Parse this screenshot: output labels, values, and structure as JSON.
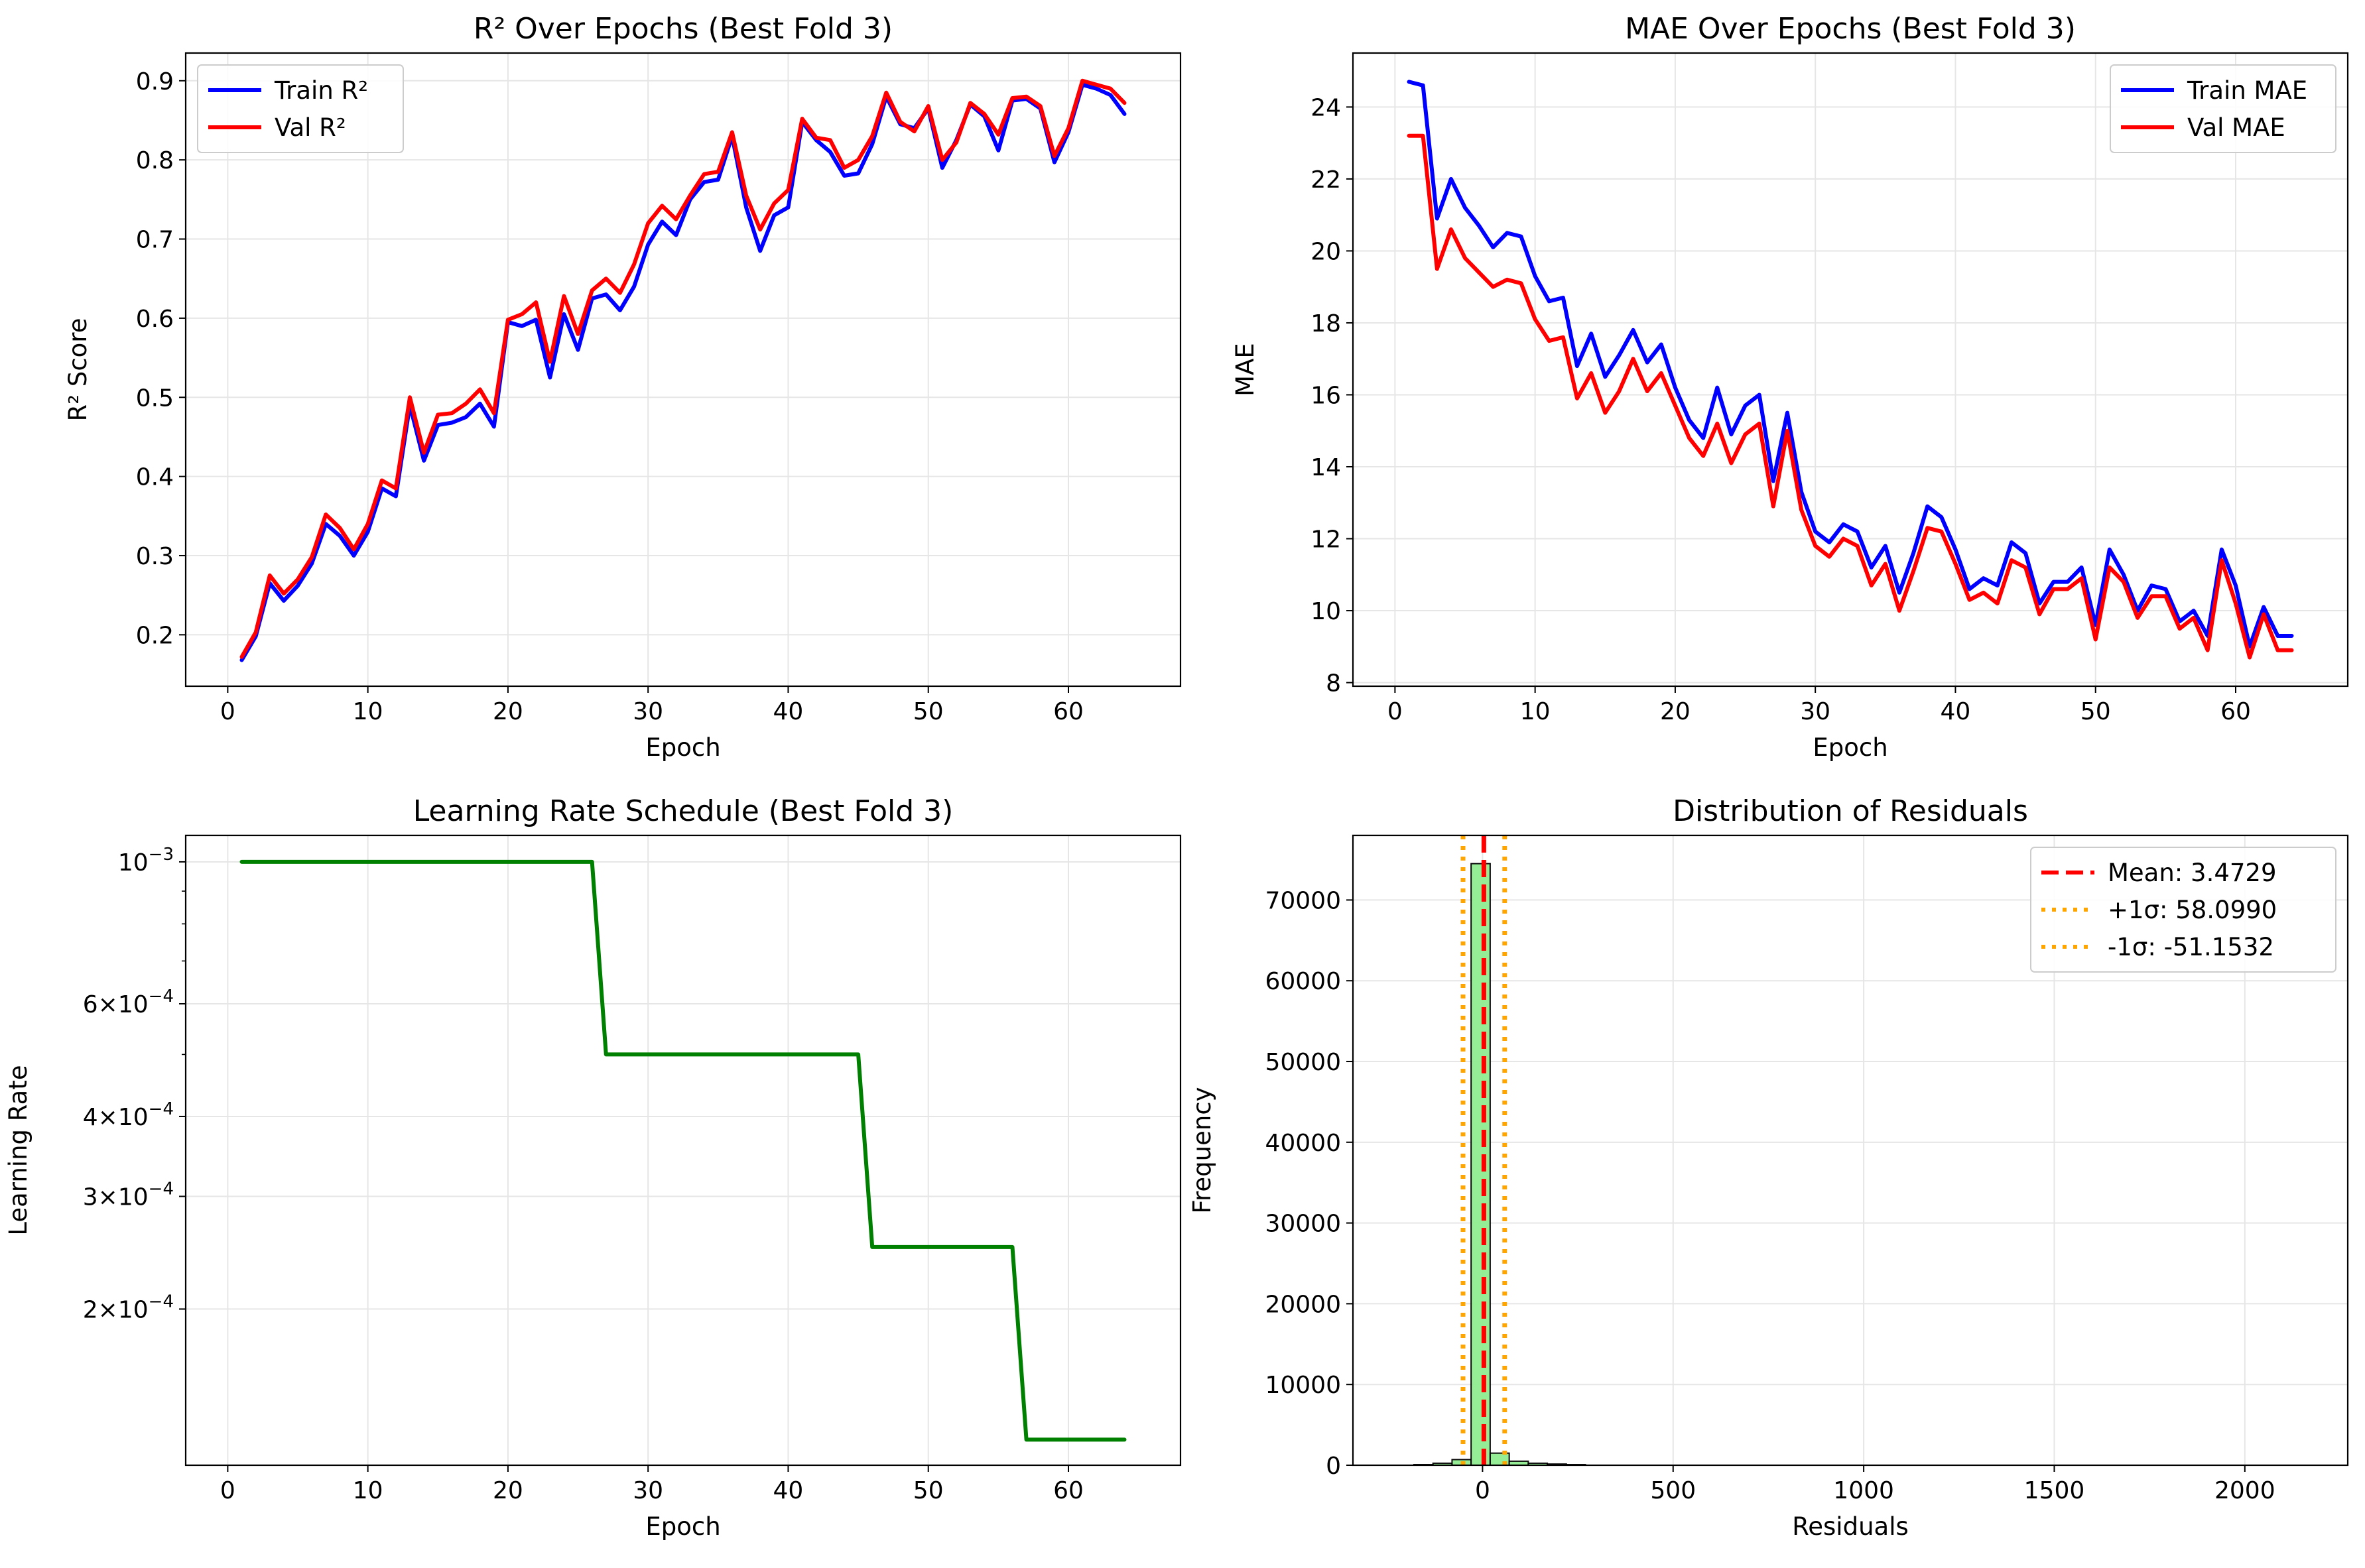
{
  "figure": {
    "background": "#ffffff"
  },
  "chart_data": [
    {
      "id": "r2",
      "type": "line",
      "title": "R² Over Epochs (Best Fold 3)",
      "xlabel": "Epoch",
      "ylabel": "R² Score",
      "xlim": [
        -3,
        68
      ],
      "ylim": [
        0.135,
        0.935
      ],
      "xticks": [
        0,
        10,
        20,
        30,
        40,
        50,
        60
      ],
      "yticks": [
        0.2,
        0.3,
        0.4,
        0.5,
        0.6,
        0.7,
        0.8,
        0.9
      ],
      "ytick_labels": [
        "0.2",
        "0.3",
        "0.4",
        "0.5",
        "0.6",
        "0.7",
        "0.8",
        "0.9"
      ],
      "grid": true,
      "legend": "upper left",
      "x": [
        1,
        2,
        3,
        4,
        5,
        6,
        7,
        8,
        9,
        10,
        11,
        12,
        13,
        14,
        15,
        16,
        17,
        18,
        19,
        20,
        21,
        22,
        23,
        24,
        25,
        26,
        27,
        28,
        29,
        30,
        31,
        32,
        33,
        34,
        35,
        36,
        37,
        38,
        39,
        40,
        41,
        42,
        43,
        44,
        45,
        46,
        47,
        48,
        49,
        50,
        51,
        52,
        53,
        54,
        55,
        56,
        57,
        58,
        59,
        60,
        61,
        62,
        63,
        64
      ],
      "series": [
        {
          "name": "Train R²",
          "color": "#0000ff",
          "values": [
            0.168,
            0.198,
            0.265,
            0.243,
            0.262,
            0.29,
            0.34,
            0.325,
            0.3,
            0.33,
            0.385,
            0.375,
            0.49,
            0.42,
            0.465,
            0.468,
            0.475,
            0.492,
            0.463,
            0.595,
            0.59,
            0.598,
            0.525,
            0.605,
            0.56,
            0.625,
            0.63,
            0.61,
            0.64,
            0.693,
            0.722,
            0.705,
            0.75,
            0.772,
            0.775,
            0.83,
            0.74,
            0.685,
            0.73,
            0.74,
            0.848,
            0.825,
            0.81,
            0.78,
            0.783,
            0.82,
            0.88,
            0.845,
            0.84,
            0.865,
            0.79,
            0.825,
            0.87,
            0.855,
            0.812,
            0.875,
            0.877,
            0.865,
            0.797,
            0.835,
            0.895,
            0.89,
            0.882,
            0.858
          ]
        },
        {
          "name": "Val R²",
          "color": "#ff0000",
          "values": [
            0.172,
            0.203,
            0.275,
            0.252,
            0.27,
            0.298,
            0.352,
            0.335,
            0.308,
            0.34,
            0.395,
            0.385,
            0.5,
            0.43,
            0.478,
            0.48,
            0.492,
            0.51,
            0.48,
            0.598,
            0.605,
            0.62,
            0.545,
            0.628,
            0.58,
            0.635,
            0.65,
            0.632,
            0.668,
            0.72,
            0.742,
            0.725,
            0.755,
            0.782,
            0.785,
            0.835,
            0.755,
            0.712,
            0.745,
            0.762,
            0.852,
            0.828,
            0.825,
            0.79,
            0.8,
            0.83,
            0.885,
            0.848,
            0.836,
            0.868,
            0.8,
            0.822,
            0.872,
            0.858,
            0.832,
            0.878,
            0.88,
            0.868,
            0.805,
            0.84,
            0.9,
            0.895,
            0.89,
            0.872
          ]
        }
      ]
    },
    {
      "id": "mae",
      "type": "line",
      "title": "MAE Over Epochs (Best Fold 3)",
      "xlabel": "Epoch",
      "ylabel": "MAE",
      "xlim": [
        -3,
        68
      ],
      "ylim": [
        7.9,
        25.5
      ],
      "xticks": [
        0,
        10,
        20,
        30,
        40,
        50,
        60
      ],
      "yticks": [
        8,
        10,
        12,
        14,
        16,
        18,
        20,
        22,
        24
      ],
      "ytick_labels": [
        "8",
        "10",
        "12",
        "14",
        "16",
        "18",
        "20",
        "22",
        "24"
      ],
      "grid": true,
      "legend": "upper right",
      "x": [
        1,
        2,
        3,
        4,
        5,
        6,
        7,
        8,
        9,
        10,
        11,
        12,
        13,
        14,
        15,
        16,
        17,
        18,
        19,
        20,
        21,
        22,
        23,
        24,
        25,
        26,
        27,
        28,
        29,
        30,
        31,
        32,
        33,
        34,
        35,
        36,
        37,
        38,
        39,
        40,
        41,
        42,
        43,
        44,
        45,
        46,
        47,
        48,
        49,
        50,
        51,
        52,
        53,
        54,
        55,
        56,
        57,
        58,
        59,
        60,
        61,
        62,
        63,
        64
      ],
      "series": [
        {
          "name": "Train MAE",
          "color": "#0000ff",
          "values": [
            24.7,
            24.6,
            20.9,
            22.0,
            21.2,
            20.7,
            20.1,
            20.5,
            20.4,
            19.3,
            18.6,
            18.7,
            16.8,
            17.7,
            16.5,
            17.1,
            17.8,
            16.9,
            17.4,
            16.2,
            15.3,
            14.8,
            16.2,
            14.9,
            15.7,
            16.0,
            13.6,
            15.5,
            13.3,
            12.2,
            11.9,
            12.4,
            12.2,
            11.2,
            11.8,
            10.5,
            11.6,
            12.9,
            12.6,
            11.7,
            10.6,
            10.9,
            10.7,
            11.9,
            11.6,
            10.2,
            10.8,
            10.8,
            11.2,
            9.6,
            11.7,
            11.0,
            10.0,
            10.7,
            10.6,
            9.7,
            10.0,
            9.3,
            11.7,
            10.7,
            9.0,
            10.1,
            9.3,
            9.3
          ]
        },
        {
          "name": "Val MAE",
          "color": "#ff0000",
          "values": [
            23.2,
            23.2,
            19.5,
            20.6,
            19.8,
            19.4,
            19.0,
            19.2,
            19.1,
            18.1,
            17.5,
            17.6,
            15.9,
            16.6,
            15.5,
            16.1,
            17.0,
            16.1,
            16.6,
            15.7,
            14.8,
            14.3,
            15.2,
            14.1,
            14.9,
            15.2,
            12.9,
            15.0,
            12.8,
            11.8,
            11.5,
            12.0,
            11.8,
            10.7,
            11.3,
            10.0,
            11.1,
            12.3,
            12.2,
            11.3,
            10.3,
            10.5,
            10.2,
            11.4,
            11.2,
            9.9,
            10.6,
            10.6,
            10.9,
            9.2,
            11.2,
            10.8,
            9.8,
            10.4,
            10.4,
            9.5,
            9.8,
            8.9,
            11.4,
            10.2,
            8.7,
            9.9,
            8.9,
            8.9
          ]
        }
      ]
    },
    {
      "id": "lr",
      "type": "line",
      "title": "Learning Rate Schedule (Best Fold 3)",
      "xlabel": "Epoch",
      "ylabel": "Learning Rate",
      "xlim": [
        -3,
        68
      ],
      "ylim": [
        0.000114,
        0.0011
      ],
      "yscale": "log",
      "xticks": [
        0,
        10,
        20,
        30,
        40,
        50,
        60
      ],
      "yticks": [
        0.001,
        0.0006,
        0.0004,
        0.0003,
        0.0002
      ],
      "ytick_labels": [
        {
          "mant": "",
          "exp": "−3"
        },
        {
          "mant": "6×",
          "exp": "−4"
        },
        {
          "mant": "4×",
          "exp": "−4"
        },
        {
          "mant": "3×",
          "exp": "−4"
        },
        {
          "mant": "2×",
          "exp": "−4"
        }
      ],
      "grid": true,
      "x": [
        1,
        2,
        3,
        4,
        5,
        6,
        7,
        8,
        9,
        10,
        11,
        12,
        13,
        14,
        15,
        16,
        17,
        18,
        19,
        20,
        21,
        22,
        23,
        24,
        25,
        26,
        27,
        28,
        29,
        30,
        31,
        32,
        33,
        34,
        35,
        36,
        37,
        38,
        39,
        40,
        41,
        42,
        43,
        44,
        45,
        46,
        47,
        48,
        49,
        50,
        51,
        52,
        53,
        54,
        55,
        56,
        57,
        58,
        59,
        60,
        61,
        62,
        63,
        64
      ],
      "series": [
        {
          "name": "Learning Rate",
          "color": "#008000",
          "values": [
            0.001,
            0.001,
            0.001,
            0.001,
            0.001,
            0.001,
            0.001,
            0.001,
            0.001,
            0.001,
            0.001,
            0.001,
            0.001,
            0.001,
            0.001,
            0.001,
            0.001,
            0.001,
            0.001,
            0.001,
            0.001,
            0.001,
            0.001,
            0.001,
            0.001,
            0.001,
            0.0005,
            0.0005,
            0.0005,
            0.0005,
            0.0005,
            0.0005,
            0.0005,
            0.0005,
            0.0005,
            0.0005,
            0.0005,
            0.0005,
            0.0005,
            0.0005,
            0.0005,
            0.0005,
            0.0005,
            0.0005,
            0.0005,
            0.00025,
            0.00025,
            0.00025,
            0.00025,
            0.00025,
            0.00025,
            0.00025,
            0.00025,
            0.00025,
            0.00025,
            0.00025,
            0.000125,
            0.000125,
            0.000125,
            0.000125,
            0.000125,
            0.000125,
            0.000125,
            0.000125
          ]
        }
      ]
    },
    {
      "id": "residuals",
      "type": "bar",
      "title": "Distribution of Residuals",
      "xlabel": "Residuals",
      "ylabel": "Frequency",
      "xlim": [
        -340,
        2270
      ],
      "ylim": [
        0,
        78000
      ],
      "xticks": [
        0,
        500,
        1000,
        1500,
        2000
      ],
      "yticks": [
        0,
        10000,
        20000,
        30000,
        40000,
        50000,
        60000,
        70000
      ],
      "ytick_labels": [
        "0",
        "10000",
        "20000",
        "30000",
        "40000",
        "50000",
        "60000",
        "70000"
      ],
      "grid": true,
      "legend": "upper right",
      "bar_color": "#90ee90",
      "bins": [
        {
          "x0": -180,
          "x1": -130,
          "value": 80
        },
        {
          "x0": -130,
          "x1": -80,
          "value": 250
        },
        {
          "x0": -80,
          "x1": -30,
          "value": 700
        },
        {
          "x0": -30,
          "x1": 20,
          "value": 74500
        },
        {
          "x0": 20,
          "x1": 70,
          "value": 1500
        },
        {
          "x0": 70,
          "x1": 120,
          "value": 500
        },
        {
          "x0": 120,
          "x1": 170,
          "value": 250
        },
        {
          "x0": 170,
          "x1": 220,
          "value": 150
        },
        {
          "x0": 220,
          "x1": 270,
          "value": 80
        }
      ],
      "lines": [
        {
          "name": "Mean: 3.4729",
          "value": 3.4729,
          "color": "#ff0000",
          "style": "dashed"
        },
        {
          "name": "+1σ: 58.0990",
          "value": 58.099,
          "color": "#ffa500",
          "style": "dotted"
        },
        {
          "name": "-1σ: -51.1532",
          "value": -51.1532,
          "color": "#ffa500",
          "style": "dotted"
        }
      ]
    }
  ]
}
